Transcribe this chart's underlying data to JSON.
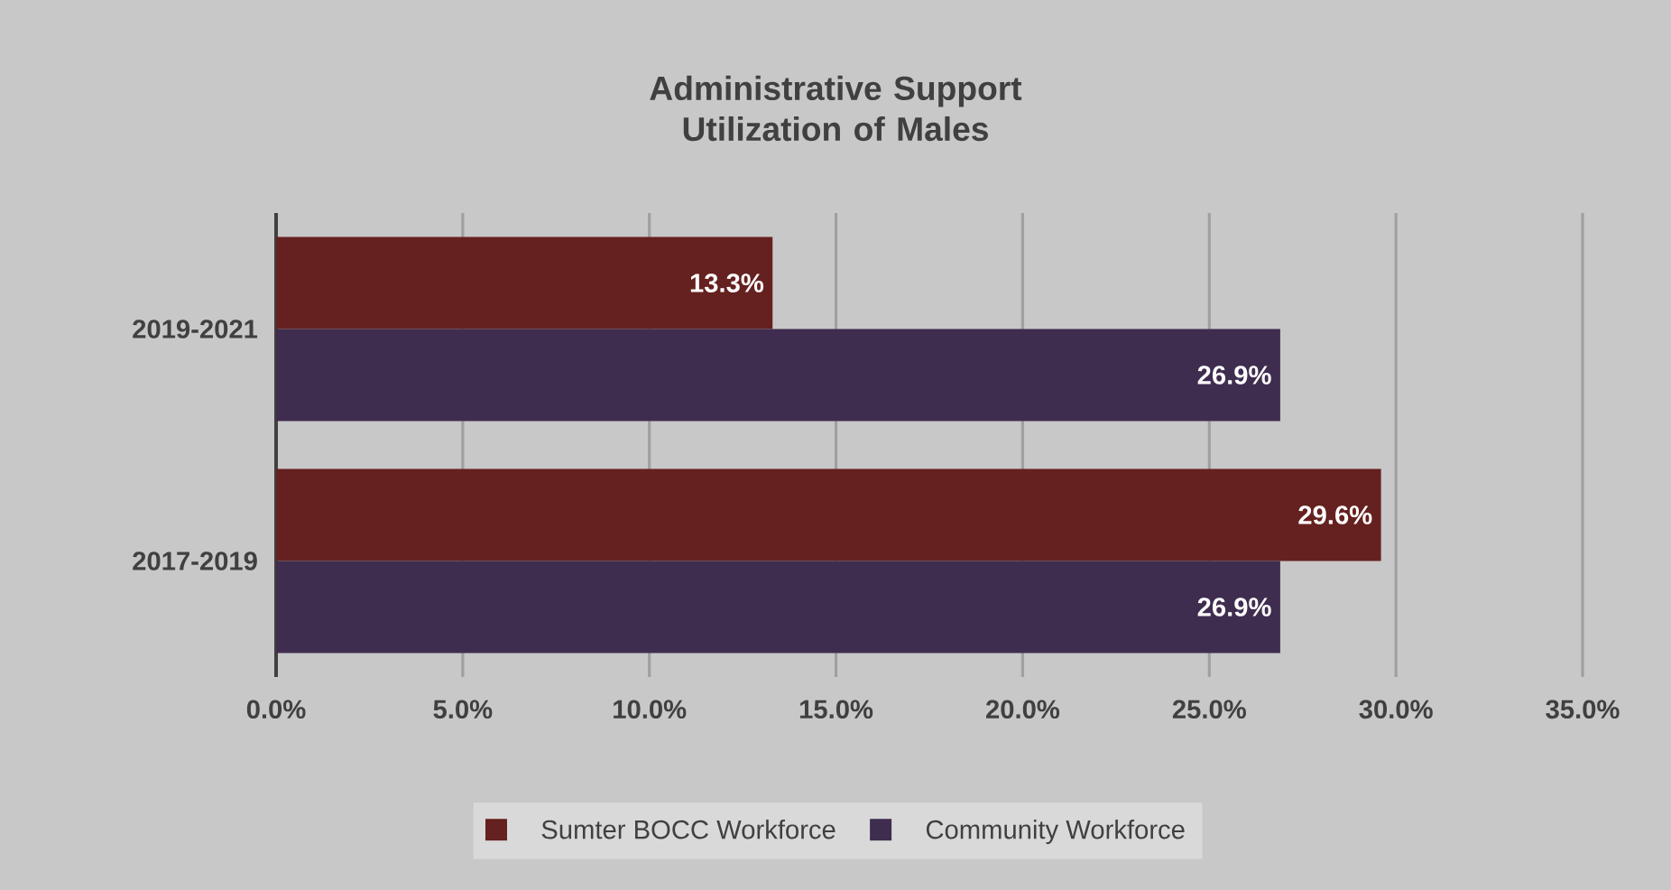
{
  "chart_data": {
    "type": "bar",
    "orientation": "horizontal",
    "title": "Administrative Support Utilization of Males",
    "categories": [
      "2019-2021",
      "2017-2019"
    ],
    "series": [
      {
        "name": "Sumter BOCC Workforce",
        "color": "#65211f",
        "values": [
          13.3,
          29.6
        ],
        "value_labels": [
          "13.3%",
          "29.6%"
        ]
      },
      {
        "name": "Community Workforce",
        "color": "#3f2d4f",
        "values": [
          26.9,
          26.9
        ],
        "value_labels": [
          "26.9%",
          "26.9%"
        ]
      }
    ],
    "xlim": [
      0,
      35
    ],
    "xticks": [
      {
        "value": 0,
        "label": "0.0%"
      },
      {
        "value": 5,
        "label": "5.0%"
      },
      {
        "value": 10,
        "label": "10.0%"
      },
      {
        "value": 15,
        "label": "15.0%"
      },
      {
        "value": 20,
        "label": "20.0%"
      },
      {
        "value": 25,
        "label": "25.0%"
      },
      {
        "value": 30,
        "label": "30.0%"
      },
      {
        "value": 35,
        "label": "35.0%"
      }
    ],
    "grid": "x",
    "legend": "bottom"
  }
}
